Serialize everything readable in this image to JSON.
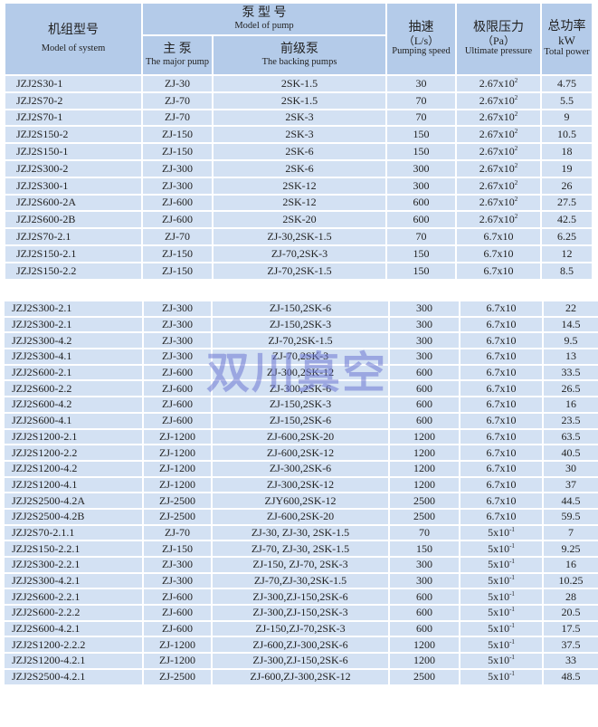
{
  "header": {
    "system_cn": "机组型号",
    "system_en": "Model of system",
    "pump_cn": "泵 型 号",
    "pump_en": "Model of pump",
    "major_cn": "主 泵",
    "major_en": "The major pump",
    "backing_cn": "前级泵",
    "backing_en": "The backing pumps",
    "speed_cn": "抽速",
    "speed_unit": "（L/s）",
    "speed_en": "Pumping speed",
    "pressure_cn": "极限压力",
    "pressure_unit": "（Pa）",
    "pressure_en": "Ultimate pressure",
    "power_cn": "总功率",
    "power_unit": "kW",
    "power_en": "Total power"
  },
  "watermark": "双川真空",
  "rows_top": [
    [
      "JZJ2S30-1",
      "ZJ-30",
      "2SK-1.5",
      "30",
      "2.67x10",
      "2",
      "4.75"
    ],
    [
      "JZJ2S70-2",
      "ZJ-70",
      "2SK-1.5",
      "70",
      "2.67x10",
      "2",
      "5.5"
    ],
    [
      "JZJ2S70-1",
      "ZJ-70",
      "2SK-3",
      "70",
      "2.67x10",
      "2",
      "9"
    ],
    [
      "JZJ2S150-2",
      "ZJ-150",
      "2SK-3",
      "150",
      "2.67x10",
      "2",
      "10.5"
    ],
    [
      "JZJ2S150-1",
      "ZJ-150",
      "2SK-6",
      "150",
      "2.67x10",
      "2",
      "18"
    ],
    [
      "JZJ2S300-2",
      "ZJ-300",
      "2SK-6",
      "300",
      "2.67x10",
      "2",
      "19"
    ],
    [
      "JZJ2S300-1",
      "ZJ-300",
      "2SK-12",
      "300",
      "2.67x10",
      "2",
      "26"
    ],
    [
      "JZJ2S600-2A",
      "ZJ-600",
      "2SK-12",
      "600",
      "2.67x10",
      "2",
      "27.5"
    ],
    [
      "JZJ2S600-2B",
      "ZJ-600",
      "2SK-20",
      "600",
      "2.67x10",
      "2",
      "42.5"
    ],
    [
      "JZJ2S70-2.1",
      "ZJ-70",
      "ZJ-30,2SK-1.5",
      "70",
      "6.7x10",
      "",
      "6.25"
    ],
    [
      "JZJ2S150-2.1",
      "ZJ-150",
      "ZJ-70,2SK-3",
      "150",
      "6.7x10",
      "",
      "12"
    ],
    [
      "JZJ2S150-2.2",
      "ZJ-150",
      "ZJ-70,2SK-1.5",
      "150",
      "6.7x10",
      "",
      "8.5"
    ]
  ],
  "rows_bottom": [
    [
      "JZJ2S300-2.1",
      "ZJ-300",
      "ZJ-150,2SK-6",
      "300",
      "6.7x10",
      "",
      "22"
    ],
    [
      "JZJ2S300-2.1",
      "ZJ-300",
      "ZJ-150,2SK-3",
      "300",
      "6.7x10",
      "",
      "14.5"
    ],
    [
      "JZJ2S300-4.2",
      "ZJ-300",
      "ZJ-70,2SK-1.5",
      "300",
      "6.7x10",
      "",
      "9.5"
    ],
    [
      "JZJ2S300-4.1",
      "ZJ-300",
      "ZJ-70,2SK-3",
      "300",
      "6.7x10",
      "",
      "13"
    ],
    [
      "JZJ2S600-2.1",
      "ZJ-600",
      "ZJ-300,2SK-12",
      "600",
      "6.7x10",
      "",
      "33.5"
    ],
    [
      "JZJ2S600-2.2",
      "ZJ-600",
      "ZJ-300,2SK-6",
      "600",
      "6.7x10",
      "",
      "26.5"
    ],
    [
      "JZJ2S600-4.2",
      "ZJ-600",
      "ZJ-150,2SK-3",
      "600",
      "6.7x10",
      "",
      "16"
    ],
    [
      "JZJ2S600-4.1",
      "ZJ-600",
      "ZJ-150,2SK-6",
      "600",
      "6.7x10",
      "",
      "23.5"
    ],
    [
      "JZJ2S1200-2.1",
      "ZJ-1200",
      "ZJ-600,2SK-20",
      "1200",
      "6.7x10",
      "",
      "63.5"
    ],
    [
      "JZJ2S1200-2.2",
      "ZJ-1200",
      "ZJ-600,2SK-12",
      "1200",
      "6.7x10",
      "",
      "40.5"
    ],
    [
      "JZJ2S1200-4.2",
      "ZJ-1200",
      "ZJ-300,2SK-6",
      "1200",
      "6.7x10",
      "",
      "30"
    ],
    [
      "JZJ2S1200-4.1",
      "ZJ-1200",
      "ZJ-300,2SK-12",
      "1200",
      "6.7x10",
      "",
      "37"
    ],
    [
      "JZJ2S2500-4.2A",
      "ZJ-2500",
      "ZJY600,2SK-12",
      "2500",
      "6.7x10",
      "",
      "44.5"
    ],
    [
      "JZJ2S2500-4.2B",
      "ZJ-2500",
      "ZJ-600,2SK-20",
      "2500",
      "6.7x10",
      "",
      "59.5"
    ],
    [
      "JZJ2S70-2.1.1",
      "ZJ-70",
      "ZJ-30, ZJ-30, 2SK-1.5",
      "70",
      "5x10",
      "-1",
      "7"
    ],
    [
      "JZJ2S150-2.2.1",
      "ZJ-150",
      "ZJ-70, ZJ-30, 2SK-1.5",
      "150",
      "5x10",
      "-1",
      "9.25"
    ],
    [
      "JZJ2S300-2.2.1",
      "ZJ-300",
      "ZJ-150, ZJ-70, 2SK-3",
      "300",
      "5x10",
      "-1",
      "16"
    ],
    [
      "JZJ2S300-4.2.1",
      "ZJ-300",
      "ZJ-70,ZJ-30,2SK-1.5",
      "300",
      "5x10",
      "-1",
      "10.25"
    ],
    [
      "JZJ2S600-2.2.1",
      "ZJ-600",
      "ZJ-300,ZJ-150,2SK-6",
      "600",
      "5x10",
      "-1",
      "28"
    ],
    [
      "JZJ2S600-2.2.2",
      "ZJ-600",
      "ZJ-300,ZJ-150,2SK-3",
      "600",
      "5x10",
      "-1",
      "20.5"
    ],
    [
      "JZJ2S600-4.2.1",
      "ZJ-600",
      "ZJ-150,ZJ-70,2SK-3",
      "600",
      "5x10",
      "-1",
      "17.5"
    ],
    [
      "JZJ2S1200-2.2.2",
      "ZJ-1200",
      "ZJ-600,ZJ-300,2SK-6",
      "1200",
      "5x10",
      "-1",
      "37.5"
    ],
    [
      "JZJ2S1200-4.2.1",
      "ZJ-1200",
      "ZJ-300,ZJ-150,2SK-6",
      "1200",
      "5x10",
      "-1",
      "33"
    ],
    [
      "JZJ2S2500-4.2.1",
      "ZJ-2500",
      "ZJ-600,ZJ-300,2SK-12",
      "2500",
      "5x10",
      "-1",
      "48.5"
    ]
  ]
}
